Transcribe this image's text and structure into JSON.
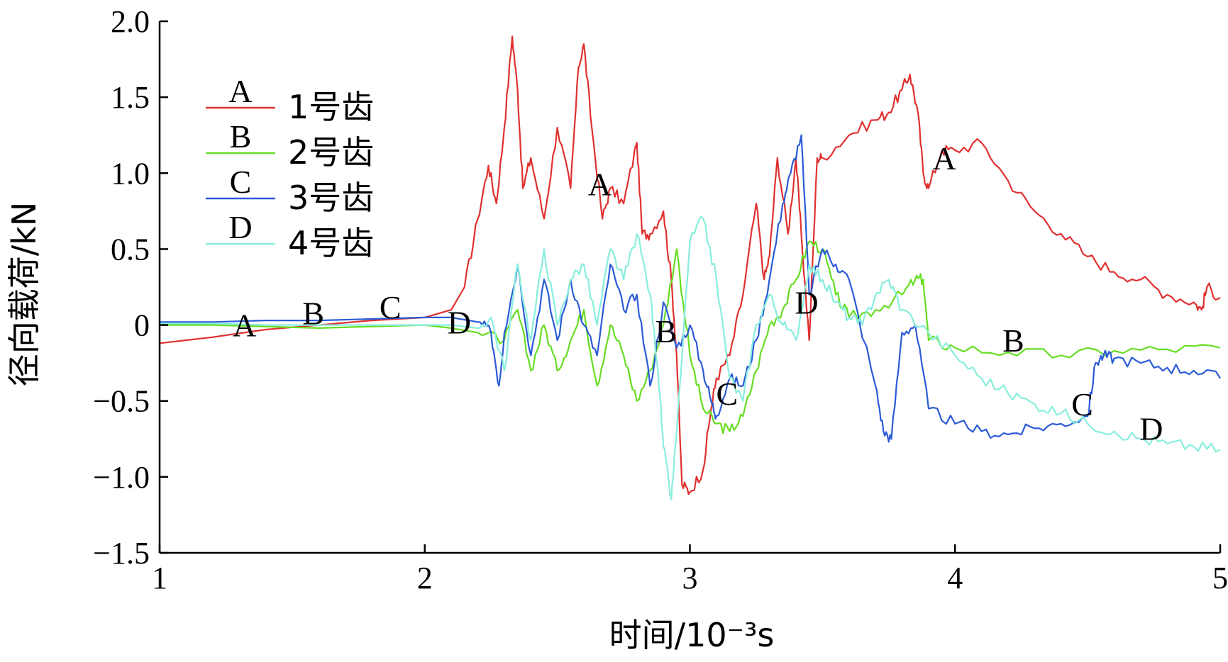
{
  "chart_data": {
    "type": "line",
    "xlabel": "时间/10⁻³s",
    "ylabel": "径向载荷/kN",
    "xlim": [
      1,
      5
    ],
    "ylim": [
      -1.5,
      2.0
    ],
    "xticks": [
      1,
      2,
      3,
      4,
      5
    ],
    "xtick_labels": [
      "1",
      "2",
      "3",
      "4",
      "5"
    ],
    "yticks": [
      -1.5,
      -1.0,
      -0.5,
      0,
      0.5,
      1.0,
      1.5,
      2.0
    ],
    "ytick_labels": [
      "−1.5",
      "−1.0",
      "−0.5",
      "0",
      "0.5",
      "1.0",
      "1.5",
      "2.0"
    ],
    "grid": false,
    "legend_position": "top-left",
    "series": [
      {
        "name": "1号齿",
        "letter": "A",
        "color": "#e03030",
        "x": [
          1.0,
          1.2,
          1.4,
          1.6,
          1.8,
          2.0,
          2.1,
          2.15,
          2.2,
          2.24,
          2.27,
          2.3,
          2.33,
          2.35,
          2.37,
          2.4,
          2.45,
          2.5,
          2.55,
          2.58,
          2.6,
          2.63,
          2.67,
          2.7,
          2.75,
          2.8,
          2.82,
          2.85,
          2.9,
          2.93,
          2.95,
          2.97,
          3.0,
          3.05,
          3.08,
          3.1,
          3.15,
          3.2,
          3.25,
          3.28,
          3.3,
          3.33,
          3.37,
          3.4,
          3.42,
          3.45,
          3.48,
          3.5,
          3.6,
          3.7,
          3.75,
          3.8,
          3.83,
          3.86,
          3.88,
          3.9,
          3.95,
          4.0,
          4.1,
          4.2,
          4.3,
          4.4,
          4.5,
          4.6,
          4.7,
          4.8,
          4.9,
          4.93,
          4.95,
          5.0
        ],
        "y": [
          -0.12,
          -0.08,
          -0.03,
          0.0,
          0.03,
          0.05,
          0.1,
          0.25,
          0.7,
          1.05,
          0.8,
          1.3,
          1.9,
          1.55,
          0.9,
          1.1,
          0.7,
          1.3,
          0.9,
          1.7,
          1.85,
          1.3,
          0.7,
          0.9,
          0.8,
          1.2,
          0.6,
          0.6,
          0.75,
          0.3,
          -0.2,
          -1.05,
          -1.1,
          -0.95,
          -0.55,
          -0.35,
          -0.2,
          0.2,
          0.8,
          0.3,
          0.45,
          1.1,
          0.6,
          1.1,
          0.6,
          -0.1,
          1.1,
          1.1,
          1.25,
          1.35,
          1.4,
          1.55,
          1.65,
          1.4,
          1.0,
          0.9,
          1.15,
          1.15,
          1.2,
          0.95,
          0.75,
          0.6,
          0.45,
          0.35,
          0.3,
          0.2,
          0.15,
          0.1,
          0.25,
          0.18
        ]
      },
      {
        "name": "2号齿",
        "letter": "B",
        "color": "#66dd22",
        "x": [
          1.0,
          1.2,
          1.4,
          1.6,
          1.8,
          2.0,
          2.1,
          2.2,
          2.3,
          2.35,
          2.4,
          2.45,
          2.5,
          2.55,
          2.6,
          2.65,
          2.7,
          2.75,
          2.8,
          2.85,
          2.9,
          2.95,
          3.0,
          3.05,
          3.1,
          3.15,
          3.2,
          3.25,
          3.3,
          3.35,
          3.4,
          3.45,
          3.5,
          3.55,
          3.6,
          3.7,
          3.8,
          3.85,
          3.88,
          3.9,
          4.0,
          4.2,
          4.4,
          4.6,
          4.8,
          5.0
        ],
        "y": [
          0.0,
          0.0,
          -0.01,
          -0.02,
          -0.01,
          0.0,
          -0.02,
          -0.05,
          -0.1,
          0.1,
          -0.3,
          0.0,
          -0.3,
          -0.1,
          0.1,
          -0.4,
          0.0,
          -0.2,
          -0.5,
          -0.3,
          0.0,
          0.5,
          -0.2,
          -0.55,
          -0.65,
          -0.7,
          -0.6,
          -0.3,
          0.0,
          0.1,
          0.3,
          0.55,
          0.5,
          0.2,
          0.05,
          0.1,
          0.2,
          0.3,
          0.3,
          -0.1,
          -0.15,
          -0.18,
          -0.2,
          -0.17,
          -0.16,
          -0.15
        ]
      },
      {
        "name": "3号齿",
        "letter": "C",
        "color": "#2a5ad8",
        "x": [
          1.0,
          1.2,
          1.4,
          1.6,
          1.8,
          2.0,
          2.1,
          2.2,
          2.25,
          2.28,
          2.3,
          2.35,
          2.4,
          2.45,
          2.5,
          2.55,
          2.6,
          2.65,
          2.7,
          2.75,
          2.8,
          2.85,
          2.9,
          2.95,
          3.0,
          3.05,
          3.08,
          3.1,
          3.15,
          3.2,
          3.25,
          3.3,
          3.35,
          3.38,
          3.42,
          3.45,
          3.5,
          3.55,
          3.6,
          3.7,
          3.73,
          3.76,
          3.8,
          3.85,
          3.9,
          4.0,
          4.1,
          4.2,
          4.3,
          4.4,
          4.5,
          4.53,
          4.56,
          4.6,
          4.7,
          4.8,
          4.9,
          5.0
        ],
        "y": [
          0.02,
          0.02,
          0.03,
          0.03,
          0.04,
          0.05,
          0.05,
          0.02,
          -0.05,
          -0.4,
          -0.05,
          0.4,
          -0.2,
          0.3,
          -0.1,
          0.3,
          0.0,
          -0.2,
          0.4,
          0.1,
          0.2,
          -0.4,
          0.15,
          -0.15,
          0.0,
          -0.3,
          -0.5,
          -0.6,
          -0.35,
          -0.4,
          -0.1,
          0.3,
          0.8,
          1.0,
          1.25,
          0.2,
          0.5,
          0.4,
          0.3,
          -0.4,
          -0.7,
          -0.75,
          -0.05,
          0.0,
          -0.55,
          -0.65,
          -0.7,
          -0.72,
          -0.68,
          -0.65,
          -0.6,
          -0.25,
          -0.2,
          -0.22,
          -0.25,
          -0.28,
          -0.3,
          -0.35
        ]
      },
      {
        "name": "4号齿",
        "letter": "D",
        "color": "#88eedd",
        "x": [
          1.0,
          1.2,
          1.4,
          1.6,
          1.8,
          2.0,
          2.1,
          2.2,
          2.25,
          2.3,
          2.35,
          2.4,
          2.45,
          2.5,
          2.55,
          2.6,
          2.65,
          2.7,
          2.75,
          2.8,
          2.85,
          2.88,
          2.9,
          2.93,
          2.95,
          3.0,
          3.05,
          3.1,
          3.15,
          3.2,
          3.25,
          3.3,
          3.35,
          3.4,
          3.45,
          3.5,
          3.55,
          3.6,
          3.65,
          3.7,
          3.75,
          3.8,
          3.9,
          4.0,
          4.1,
          4.2,
          4.3,
          4.4,
          4.5,
          4.6,
          4.7,
          4.8,
          4.9,
          5.0
        ],
        "y": [
          0.01,
          0.01,
          0.0,
          0.0,
          0.0,
          0.0,
          0.0,
          -0.02,
          0.05,
          -0.3,
          0.4,
          -0.1,
          0.5,
          0.0,
          0.3,
          0.4,
          0.0,
          0.5,
          0.3,
          0.6,
          0.2,
          -0.3,
          -0.8,
          -1.15,
          -0.7,
          0.55,
          0.7,
          0.3,
          -0.35,
          -0.5,
          0.0,
          0.2,
          0.0,
          -0.1,
          0.4,
          0.3,
          0.15,
          0.05,
          0.0,
          0.2,
          0.3,
          0.1,
          -0.05,
          -0.2,
          -0.35,
          -0.45,
          -0.52,
          -0.58,
          -0.65,
          -0.7,
          -0.75,
          -0.78,
          -0.8,
          -0.82
        ]
      }
    ],
    "annotations": [
      {
        "text": "A",
        "x": 1.32,
        "y": 0.0
      },
      {
        "text": "B",
        "x": 1.58,
        "y": 0.08
      },
      {
        "text": "C",
        "x": 1.87,
        "y": 0.12
      },
      {
        "text": "D",
        "x": 2.13,
        "y": 0.02
      },
      {
        "text": "A",
        "x": 2.66,
        "y": 0.93
      },
      {
        "text": "B",
        "x": 2.91,
        "y": -0.04
      },
      {
        "text": "C",
        "x": 3.14,
        "y": -0.45
      },
      {
        "text": "D",
        "x": 3.44,
        "y": 0.15
      },
      {
        "text": "A",
        "x": 3.96,
        "y": 1.1
      },
      {
        "text": "B",
        "x": 4.22,
        "y": -0.1
      },
      {
        "text": "C",
        "x": 4.48,
        "y": -0.52
      },
      {
        "text": "D",
        "x": 4.74,
        "y": -0.68
      }
    ]
  }
}
